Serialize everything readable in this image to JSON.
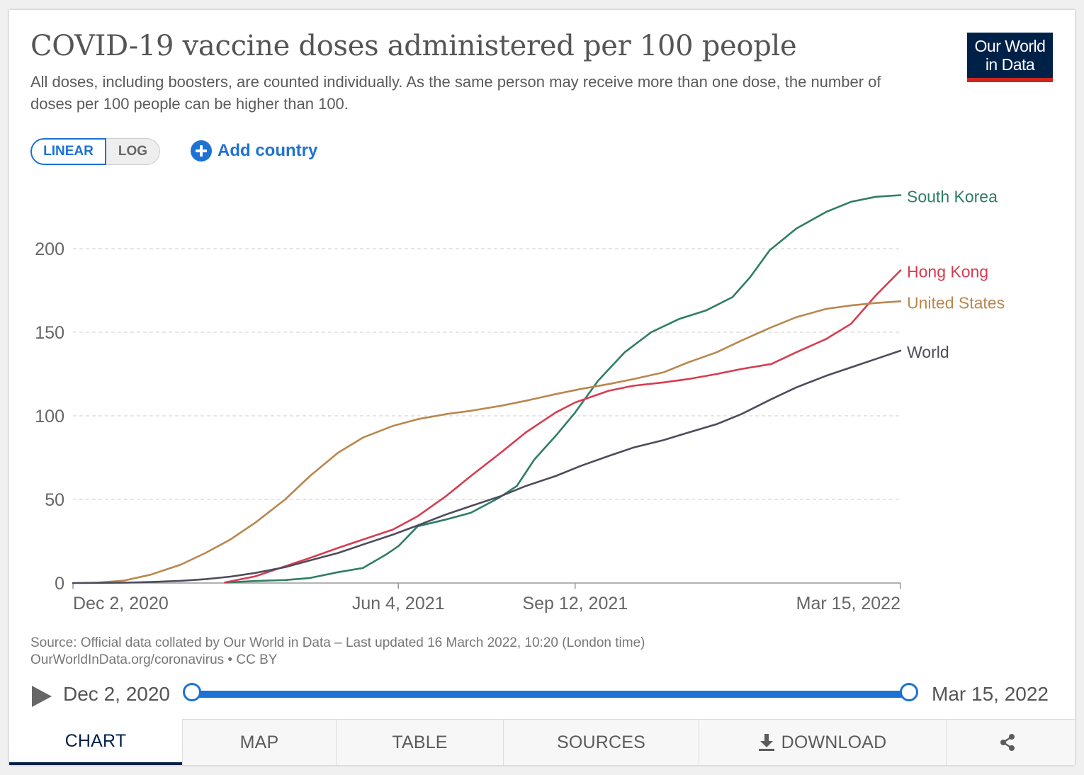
{
  "header": {
    "title": "COVID-19 vaccine doses administered per 100 people",
    "subtitle": "All doses, including boosters, are counted individually. As the same person may receive more than one dose, the number of doses per 100 people can be higher than 100.",
    "logo_line1": "Our World",
    "logo_line2": "in Data"
  },
  "controls": {
    "linear_label": "LINEAR",
    "log_label": "LOG",
    "selected_scale": "linear",
    "add_country_label": "Add country"
  },
  "footer": {
    "source": "Source: Official data collated by Our World in Data – Last updated 16 March 2022, 10:20 (London time)",
    "url_line": "OurWorldInData.org/coronavirus • CC BY"
  },
  "timeline": {
    "start_label": "Dec 2, 2020",
    "end_label": "Mar 15, 2022",
    "range_start_fraction": 0,
    "range_end_fraction": 1
  },
  "tabs": {
    "chart": "CHART",
    "map": "MAP",
    "table": "TABLE",
    "sources": "SOURCES",
    "download": "DOWNLOAD",
    "active": "chart"
  },
  "icons": {
    "play": "play-icon",
    "add": "plus-circle-icon",
    "download": "download-icon",
    "share": "share-icon"
  },
  "colors": {
    "accent": "#1d72d3",
    "brand_navy": "#002147",
    "brand_red": "#ce261e"
  },
  "chart_data": {
    "type": "line",
    "title": "COVID-19 vaccine doses administered per 100 people",
    "xlabel": "",
    "ylabel": "",
    "x_range": [
      "2020-12-02",
      "2022-03-15"
    ],
    "ylim": [
      0,
      235
    ],
    "y_ticks": [
      0,
      50,
      100,
      150,
      200
    ],
    "x_ticks": [
      {
        "date": "2020-12-02",
        "label": "Dec 2, 2020"
      },
      {
        "date": "2021-06-04",
        "label": "Jun 4, 2021"
      },
      {
        "date": "2021-09-12",
        "label": "Sep 12, 2021"
      },
      {
        "date": "2022-03-15",
        "label": "Mar 15, 2022"
      }
    ],
    "grid": "horizontal dashed",
    "legend": "inline labels at line ends",
    "series": [
      {
        "name": "South Korea",
        "color": "#2e7d67",
        "points": [
          [
            "2021-02-26",
            0.3
          ],
          [
            "2021-03-15",
            1.2
          ],
          [
            "2021-04-01",
            1.8
          ],
          [
            "2021-04-15",
            3
          ],
          [
            "2021-05-01",
            6.5
          ],
          [
            "2021-05-15",
            9
          ],
          [
            "2021-05-28",
            17
          ],
          [
            "2021-06-04",
            22
          ],
          [
            "2021-06-15",
            34
          ],
          [
            "2021-07-01",
            38
          ],
          [
            "2021-07-15",
            42
          ],
          [
            "2021-07-31",
            51
          ],
          [
            "2021-08-10",
            58
          ],
          [
            "2021-08-20",
            74
          ],
          [
            "2021-09-01",
            88
          ],
          [
            "2021-09-12",
            102
          ],
          [
            "2021-09-25",
            121
          ],
          [
            "2021-10-10",
            138
          ],
          [
            "2021-10-25",
            150
          ],
          [
            "2021-11-10",
            158
          ],
          [
            "2021-11-25",
            163
          ],
          [
            "2021-12-10",
            171
          ],
          [
            "2021-12-20",
            183
          ],
          [
            "2021-12-31",
            199
          ],
          [
            "2022-01-15",
            212
          ],
          [
            "2022-02-01",
            222
          ],
          [
            "2022-02-15",
            228
          ],
          [
            "2022-03-01",
            231
          ],
          [
            "2022-03-15",
            232
          ]
        ]
      },
      {
        "name": "Hong Kong",
        "color": "#d73c50",
        "points": [
          [
            "2021-02-26",
            0.4
          ],
          [
            "2021-03-15",
            4
          ],
          [
            "2021-04-01",
            10
          ],
          [
            "2021-04-15",
            15
          ],
          [
            "2021-05-01",
            21
          ],
          [
            "2021-05-15",
            26
          ],
          [
            "2021-06-01",
            32
          ],
          [
            "2021-06-15",
            40
          ],
          [
            "2021-07-01",
            52
          ],
          [
            "2021-07-15",
            64
          ],
          [
            "2021-08-01",
            78
          ],
          [
            "2021-08-15",
            90
          ],
          [
            "2021-09-01",
            102
          ],
          [
            "2021-09-12",
            108
          ],
          [
            "2021-10-01",
            115
          ],
          [
            "2021-10-15",
            118
          ],
          [
            "2021-11-01",
            120
          ],
          [
            "2021-11-15",
            122
          ],
          [
            "2021-12-01",
            125
          ],
          [
            "2021-12-15",
            128
          ],
          [
            "2022-01-01",
            131
          ],
          [
            "2022-01-15",
            138
          ],
          [
            "2022-02-01",
            146
          ],
          [
            "2022-02-15",
            155
          ],
          [
            "2022-03-01",
            172
          ],
          [
            "2022-03-15",
            187
          ]
        ]
      },
      {
        "name": "United States",
        "color": "#b9874e",
        "points": [
          [
            "2020-12-14",
            0.1
          ],
          [
            "2020-12-31",
            1.5
          ],
          [
            "2021-01-15",
            5
          ],
          [
            "2021-02-01",
            11
          ],
          [
            "2021-02-15",
            18
          ],
          [
            "2021-03-01",
            26
          ],
          [
            "2021-03-15",
            36
          ],
          [
            "2021-04-01",
            50
          ],
          [
            "2021-04-15",
            64
          ],
          [
            "2021-05-01",
            78
          ],
          [
            "2021-05-15",
            87
          ],
          [
            "2021-06-01",
            94
          ],
          [
            "2021-06-15",
            98
          ],
          [
            "2021-07-01",
            101
          ],
          [
            "2021-07-15",
            103
          ],
          [
            "2021-08-01",
            106
          ],
          [
            "2021-08-15",
            109
          ],
          [
            "2021-09-01",
            113
          ],
          [
            "2021-09-15",
            116
          ],
          [
            "2021-10-01",
            119
          ],
          [
            "2021-10-15",
            122
          ],
          [
            "2021-11-01",
            126
          ],
          [
            "2021-11-15",
            132
          ],
          [
            "2021-12-01",
            138
          ],
          [
            "2021-12-15",
            145
          ],
          [
            "2022-01-01",
            153
          ],
          [
            "2022-01-15",
            159
          ],
          [
            "2022-02-01",
            164
          ],
          [
            "2022-02-15",
            166
          ],
          [
            "2022-03-01",
            167.5
          ],
          [
            "2022-03-15",
            168.5
          ]
        ]
      },
      {
        "name": "World",
        "color": "#4c4c5c",
        "points": [
          [
            "2020-12-02",
            0
          ],
          [
            "2020-12-31",
            0.2
          ],
          [
            "2021-01-15",
            0.6
          ],
          [
            "2021-02-01",
            1.3
          ],
          [
            "2021-02-15",
            2.3
          ],
          [
            "2021-03-01",
            3.8
          ],
          [
            "2021-03-15",
            6
          ],
          [
            "2021-04-01",
            9.5
          ],
          [
            "2021-04-15",
            13.5
          ],
          [
            "2021-05-01",
            18
          ],
          [
            "2021-05-15",
            23
          ],
          [
            "2021-06-01",
            29
          ],
          [
            "2021-06-15",
            34.5
          ],
          [
            "2021-07-01",
            41
          ],
          [
            "2021-07-15",
            46
          ],
          [
            "2021-08-01",
            52
          ],
          [
            "2021-08-15",
            58
          ],
          [
            "2021-09-01",
            64
          ],
          [
            "2021-09-15",
            70
          ],
          [
            "2021-10-01",
            76
          ],
          [
            "2021-10-15",
            81
          ],
          [
            "2021-11-01",
            85.5
          ],
          [
            "2021-11-15",
            90
          ],
          [
            "2021-12-01",
            95
          ],
          [
            "2021-12-15",
            101
          ],
          [
            "2022-01-01",
            110
          ],
          [
            "2022-01-15",
            117
          ],
          [
            "2022-02-01",
            124
          ],
          [
            "2022-02-15",
            129
          ],
          [
            "2022-03-01",
            134
          ],
          [
            "2022-03-15",
            139
          ]
        ]
      }
    ]
  }
}
